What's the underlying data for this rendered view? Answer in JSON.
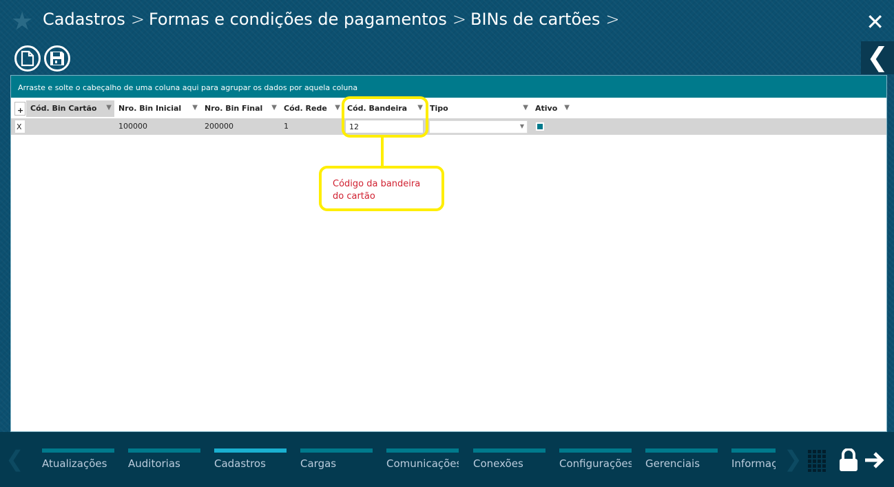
{
  "header": {
    "breadcrumbs": [
      "Cadastros",
      "Formas e condições de pagamentos",
      "BINs de cartões"
    ],
    "separator": ">"
  },
  "icons": {
    "favorite": "star-icon",
    "close": "close-icon",
    "back": "chevron-left-icon",
    "new": "new-document-icon",
    "save": "save-icon",
    "apps": "grid-icon",
    "lock": "lock-icon",
    "logout": "arrow-right-icon"
  },
  "grid": {
    "group_hint": "Arraste e solte o cabeçalho de uma coluna aqui para agrupar os dados por aquela coluna",
    "add_label": "+",
    "columns": [
      "Cód. Bin Cartão",
      "Nro. Bin Inicial",
      "Nro. Bin Final",
      "Cód. Rede",
      "Cód. Bandeira",
      "Tipo",
      "Ativo"
    ],
    "rows": [
      {
        "delete": "X",
        "cod_bin": "",
        "bin_inicial": "100000",
        "bin_final": "200000",
        "cod_rede": "1",
        "cod_bandeira": "12",
        "tipo": "",
        "ativo": true
      }
    ]
  },
  "callout": "Código da bandeira do cartão",
  "callout_color": "#ffee00",
  "footer": {
    "tabs": [
      "Atualizações",
      "Auditorias",
      "Cadastros",
      "Cargas",
      "Comunicações",
      "Conexões",
      "Configurações",
      "Gerenciais",
      "Informações"
    ],
    "active": "Cadastros"
  }
}
